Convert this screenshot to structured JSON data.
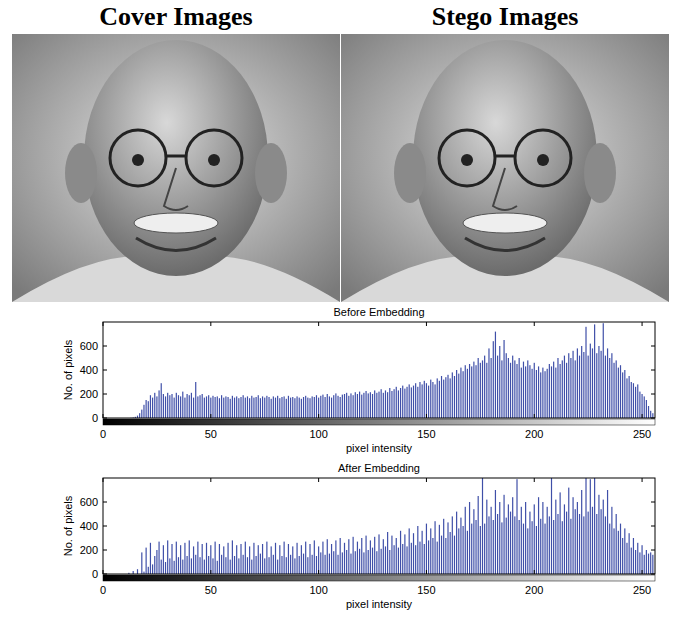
{
  "image_titles": [
    "Cover Images",
    "Stego Images"
  ],
  "chart_data": [
    {
      "type": "bar",
      "title": "Before Embedding",
      "x_label": "pixel intensity",
      "y_label": "No. of pixels",
      "color": "#3f4fa8",
      "xlim": [
        0,
        256
      ],
      "ylim": [
        0,
        800
      ],
      "xticks": [
        0,
        50,
        100,
        150,
        200,
        250
      ],
      "yticks": [
        0,
        200,
        400,
        600
      ],
      "x": [
        0,
        1,
        2,
        3,
        4,
        5,
        6,
        7,
        8,
        9,
        10,
        11,
        12,
        13,
        14,
        15,
        16,
        17,
        18,
        19,
        20,
        21,
        22,
        23,
        24,
        25,
        26,
        27,
        28,
        29,
        30,
        31,
        32,
        33,
        34,
        35,
        36,
        37,
        38,
        39,
        40,
        41,
        42,
        43,
        44,
        45,
        46,
        47,
        48,
        49,
        50,
        51,
        52,
        53,
        54,
        55,
        56,
        57,
        58,
        59,
        60,
        61,
        62,
        63,
        64,
        65,
        66,
        67,
        68,
        69,
        70,
        71,
        72,
        73,
        74,
        75,
        76,
        77,
        78,
        79,
        80,
        81,
        82,
        83,
        84,
        85,
        86,
        87,
        88,
        89,
        90,
        91,
        92,
        93,
        94,
        95,
        96,
        97,
        98,
        99,
        100,
        101,
        102,
        103,
        104,
        105,
        106,
        107,
        108,
        109,
        110,
        111,
        112,
        113,
        114,
        115,
        116,
        117,
        118,
        119,
        120,
        121,
        122,
        123,
        124,
        125,
        126,
        127,
        128,
        129,
        130,
        131,
        132,
        133,
        134,
        135,
        136,
        137,
        138,
        139,
        140,
        141,
        142,
        143,
        144,
        145,
        146,
        147,
        148,
        149,
        150,
        151,
        152,
        153,
        154,
        155,
        156,
        157,
        158,
        159,
        160,
        161,
        162,
        163,
        164,
        165,
        166,
        167,
        168,
        169,
        170,
        171,
        172,
        173,
        174,
        175,
        176,
        177,
        178,
        179,
        180,
        181,
        182,
        183,
        184,
        185,
        186,
        187,
        188,
        189,
        190,
        191,
        192,
        193,
        194,
        195,
        196,
        197,
        198,
        199,
        200,
        201,
        202,
        203,
        204,
        205,
        206,
        207,
        208,
        209,
        210,
        211,
        212,
        213,
        214,
        215,
        216,
        217,
        218,
        219,
        220,
        221,
        222,
        223,
        224,
        225,
        226,
        227,
        228,
        229,
        230,
        231,
        232,
        233,
        234,
        235,
        236,
        237,
        238,
        239,
        240,
        241,
        242,
        243,
        244,
        245,
        246,
        247,
        248,
        249,
        250,
        251,
        252,
        253,
        254,
        255
      ],
      "values": [
        0,
        0,
        0,
        0,
        0,
        0,
        0,
        0,
        0,
        0,
        0,
        0,
        0,
        2,
        5,
        10,
        20,
        40,
        70,
        110,
        150,
        140,
        190,
        170,
        210,
        180,
        230,
        290,
        200,
        180,
        210,
        190,
        200,
        170,
        210,
        190,
        180,
        220,
        170,
        200,
        190,
        210,
        170,
        300,
        180,
        190,
        200,
        170,
        180,
        190,
        170,
        185,
        175,
        180,
        165,
        190,
        170,
        180,
        175,
        160,
        185,
        170,
        180,
        165,
        175,
        190,
        170,
        180,
        165,
        185,
        170,
        175,
        190,
        165,
        180,
        170,
        185,
        175,
        160,
        180,
        170,
        185,
        165,
        175,
        180,
        160,
        185,
        170,
        175,
        165,
        180,
        170,
        160,
        175,
        185,
        170,
        165,
        180,
        175,
        190,
        170,
        185,
        195,
        175,
        200,
        180,
        170,
        190,
        205,
        185,
        175,
        195,
        200,
        210,
        185,
        205,
        190,
        215,
        200,
        220,
        195,
        210,
        225,
        205,
        215,
        200,
        230,
        210,
        220,
        240,
        210,
        230,
        215,
        250,
        225,
        240,
        260,
        230,
        250,
        270,
        245,
        260,
        280,
        255,
        270,
        290,
        260,
        300,
        280,
        310,
        290,
        270,
        320,
        300,
        280,
        330,
        310,
        350,
        320,
        340,
        360,
        330,
        380,
        350,
        400,
        370,
        420,
        390,
        440,
        410,
        450,
        430,
        470,
        440,
        500,
        460,
        480,
        520,
        460,
        580,
        500,
        640,
        720,
        520,
        600,
        480,
        650,
        540,
        500,
        460,
        520,
        480,
        450,
        500,
        420,
        470,
        430,
        480,
        440,
        410,
        460,
        400,
        430,
        380,
        420,
        390,
        410,
        450,
        430,
        470,
        420,
        500,
        450,
        480,
        520,
        460,
        540,
        500,
        560,
        480,
        580,
        520,
        600,
        550,
        760,
        520,
        620,
        580,
        780,
        540,
        600,
        560,
        790,
        520,
        580,
        500,
        540,
        460,
        480,
        420,
        440,
        380,
        400,
        330,
        350,
        300,
        290,
        260,
        280,
        220,
        200,
        180,
        150,
        100,
        60,
        40
      ]
    },
    {
      "type": "bar",
      "title": "After Embedding",
      "x_label": "pixel intensity",
      "y_label": "No. of pixels",
      "color": "#3f4fa8",
      "xlim": [
        0,
        256
      ],
      "ylim": [
        0,
        800
      ],
      "xticks": [
        0,
        50,
        100,
        150,
        200,
        250
      ],
      "yticks": [
        0,
        200,
        400,
        600
      ],
      "x": [
        0,
        1,
        2,
        3,
        4,
        5,
        6,
        7,
        8,
        9,
        10,
        11,
        12,
        13,
        14,
        15,
        16,
        17,
        18,
        19,
        20,
        21,
        22,
        23,
        24,
        25,
        26,
        27,
        28,
        29,
        30,
        31,
        32,
        33,
        34,
        35,
        36,
        37,
        38,
        39,
        40,
        41,
        42,
        43,
        44,
        45,
        46,
        47,
        48,
        49,
        50,
        51,
        52,
        53,
        54,
        55,
        56,
        57,
        58,
        59,
        60,
        61,
        62,
        63,
        64,
        65,
        66,
        67,
        68,
        69,
        70,
        71,
        72,
        73,
        74,
        75,
        76,
        77,
        78,
        79,
        80,
        81,
        82,
        83,
        84,
        85,
        86,
        87,
        88,
        89,
        90,
        91,
        92,
        93,
        94,
        95,
        96,
        97,
        98,
        99,
        100,
        101,
        102,
        103,
        104,
        105,
        106,
        107,
        108,
        109,
        110,
        111,
        112,
        113,
        114,
        115,
        116,
        117,
        118,
        119,
        120,
        121,
        122,
        123,
        124,
        125,
        126,
        127,
        128,
        129,
        130,
        131,
        132,
        133,
        134,
        135,
        136,
        137,
        138,
        139,
        140,
        141,
        142,
        143,
        144,
        145,
        146,
        147,
        148,
        149,
        150,
        151,
        152,
        153,
        154,
        155,
        156,
        157,
        158,
        159,
        160,
        161,
        162,
        163,
        164,
        165,
        166,
        167,
        168,
        169,
        170,
        171,
        172,
        173,
        174,
        175,
        176,
        177,
        178,
        179,
        180,
        181,
        182,
        183,
        184,
        185,
        186,
        187,
        188,
        189,
        190,
        191,
        192,
        193,
        194,
        195,
        196,
        197,
        198,
        199,
        200,
        201,
        202,
        203,
        204,
        205,
        206,
        207,
        208,
        209,
        210,
        211,
        212,
        213,
        214,
        215,
        216,
        217,
        218,
        219,
        220,
        221,
        222,
        223,
        224,
        225,
        226,
        227,
        228,
        229,
        230,
        231,
        232,
        233,
        234,
        235,
        236,
        237,
        238,
        239,
        240,
        241,
        242,
        243,
        244,
        245,
        246,
        247,
        248,
        249,
        250,
        251,
        252,
        253,
        254,
        255
      ],
      "values": [
        0,
        0,
        0,
        0,
        0,
        0,
        0,
        0,
        0,
        0,
        0,
        0,
        10,
        0,
        25,
        0,
        40,
        0,
        180,
        20,
        220,
        60,
        260,
        80,
        150,
        200,
        270,
        120,
        240,
        100,
        280,
        130,
        250,
        110,
        270,
        140,
        240,
        120,
        260,
        150,
        280,
        130,
        230,
        160,
        270,
        140,
        250,
        120,
        260,
        150,
        240,
        130,
        270,
        110,
        250,
        160,
        230,
        140,
        260,
        120,
        280,
        150,
        240,
        130,
        250,
        160,
        270,
        140,
        230,
        120,
        260,
        150,
        240,
        170,
        250,
        130,
        270,
        140,
        230,
        160,
        260,
        120,
        240,
        150,
        270,
        140,
        250,
        160,
        230,
        130,
        260,
        150,
        240,
        170,
        270,
        140,
        250,
        160,
        280,
        150,
        230,
        180,
        270,
        160,
        290,
        170,
        250,
        190,
        280,
        160,
        300,
        180,
        260,
        200,
        290,
        170,
        310,
        190,
        270,
        210,
        300,
        180,
        320,
        200,
        280,
        220,
        310,
        190,
        330,
        210,
        290,
        230,
        350,
        200,
        320,
        240,
        300,
        220,
        360,
        250,
        330,
        230,
        380,
        260,
        340,
        240,
        400,
        270,
        360,
        250,
        420,
        280,
        380,
        300,
        440,
        270,
        410,
        320,
        460,
        300,
        430,
        350,
        480,
        320,
        520,
        380,
        470,
        400,
        560,
        360,
        600,
        420,
        540,
        450,
        650,
        400,
        800,
        420,
        620,
        480,
        560,
        450,
        700,
        500,
        600,
        430,
        660,
        470,
        580,
        520,
        640,
        480,
        790,
        450,
        560,
        420,
        600,
        380,
        520,
        440,
        580,
        400,
        640,
        460,
        600,
        420,
        560,
        480,
        800,
        450,
        620,
        500,
        680,
        440,
        580,
        520,
        720,
        460,
        640,
        540,
        600,
        500,
        700,
        480,
        800,
        520,
        790,
        560,
        800,
        500,
        660,
        540,
        620,
        480,
        700,
        420,
        560,
        380,
        500,
        360,
        420,
        300,
        380,
        260,
        340,
        220,
        300,
        200,
        260,
        180,
        240,
        160,
        200,
        170,
        180,
        160
      ]
    }
  ]
}
